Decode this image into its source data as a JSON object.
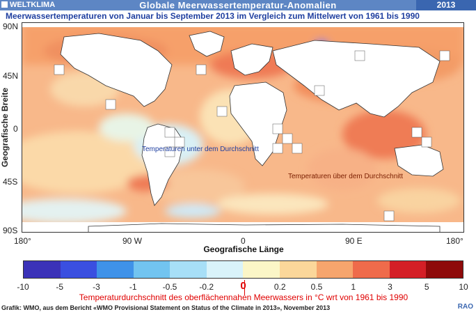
{
  "header": {
    "brand": "WELTKLIMA",
    "title": "Globale Meerwassertemperatur-Anomalien",
    "year": "2013"
  },
  "subtitle": "Meerwassertemperaturen von Januar bis September 2013 im Vergleich zum Mittelwert von 1961 bis 1990",
  "map": {
    "y_axis_title": "Geografische Breite",
    "y_ticks": [
      "90N",
      "45N",
      "0",
      "45S",
      "90S"
    ],
    "x_ticks": [
      "180°",
      "90 W",
      "0",
      "90 E",
      "180°"
    ],
    "x_axis_title": "Geografische Länge",
    "annotation_below": "Temperaturen unter dem Durchschnitt",
    "annotation_above": "Temperaturen über dem Durchschnitt"
  },
  "legend": {
    "colors": [
      "#3b32b8",
      "#3a4fe0",
      "#3f92e8",
      "#72c4f0",
      "#a7dff7",
      "#d9f3fa",
      "#fbf6c7",
      "#fbd79a",
      "#f6a56d",
      "#ef6b4b",
      "#d41f26",
      "#8e0a0a"
    ],
    "labels": [
      "-10",
      "-5",
      "-3",
      "-1",
      "-0.5",
      "-0.2",
      "0",
      "0.2",
      "0.5",
      "1",
      "3",
      "5",
      "10"
    ],
    "caption": "Temperaturdurchschnitt des oberflächennahen Meerwassers in °C wrt von 1961 bis 1990"
  },
  "footer": {
    "source": "Grafik: WMO, aus dem Bericht «WMO Provisional Statement on Status of the Climate in 2013», November 2013",
    "signature": "RAO"
  }
}
